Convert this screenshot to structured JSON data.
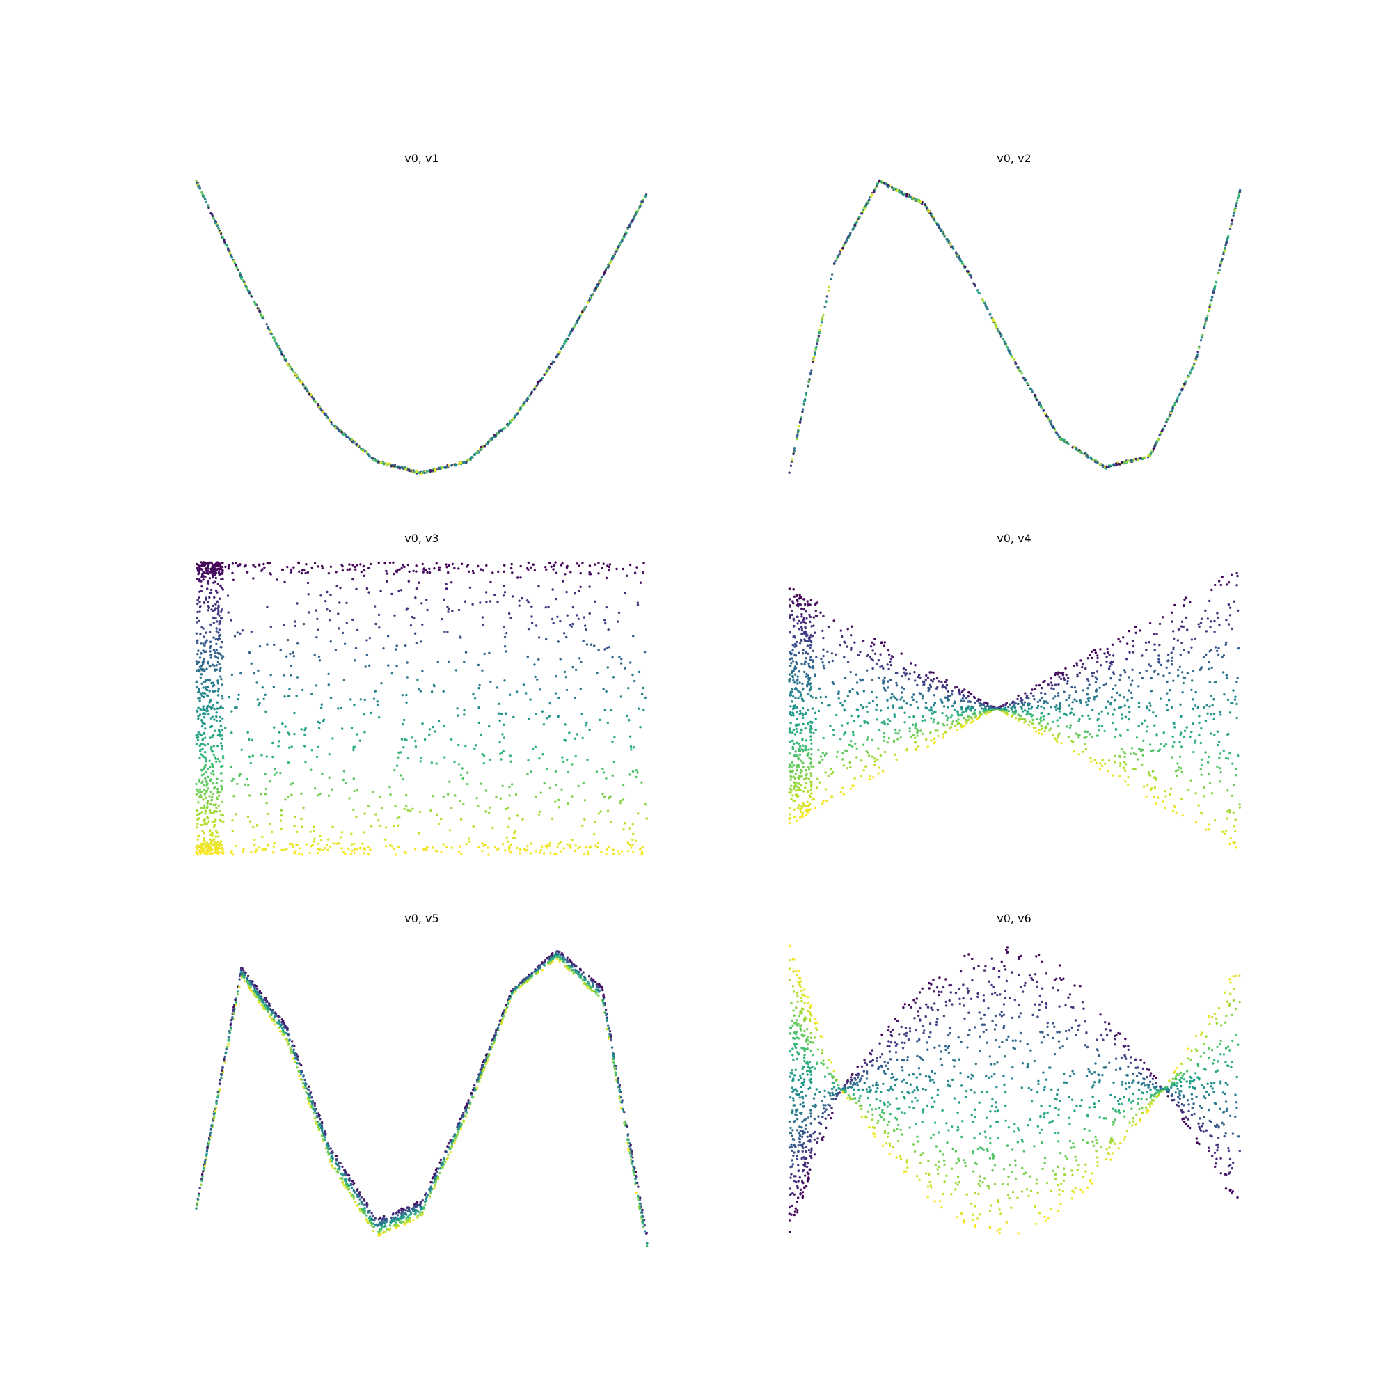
{
  "figure": {
    "background": "#ffffff",
    "colormap": "viridis",
    "point_color_by": "v3"
  },
  "chart_data": [
    {
      "type": "scatter",
      "title": "v0, v1",
      "xlabel": "",
      "ylabel": "",
      "axes_visible": false,
      "series": [
        {
          "x_range": [
            -1,
            1
          ],
          "shape": "quadratic curve, thin band, colors mixed",
          "x": [
            -1,
            -0.8,
            -0.6,
            -0.4,
            -0.2,
            0,
            0.2,
            0.4,
            0.6,
            0.8,
            1
          ],
          "y": [
            1.0,
            0.67,
            0.38,
            0.17,
            0.04,
            0.0,
            0.04,
            0.18,
            0.4,
            0.67,
            0.96
          ]
        }
      ]
    },
    {
      "type": "scatter",
      "title": "v0, v2",
      "xlabel": "",
      "ylabel": "",
      "axes_visible": false,
      "series": [
        {
          "x_range": [
            -1,
            1
          ],
          "shape": "cubic curve, thin band, colors mixed",
          "x": [
            -1,
            -0.8,
            -0.6,
            -0.4,
            -0.2,
            0,
            0.2,
            0.4,
            0.6,
            0.8,
            1
          ],
          "y": [
            0.0,
            0.72,
            1.0,
            0.92,
            0.68,
            0.38,
            0.12,
            0.02,
            0.06,
            0.38,
            0.97
          ]
        }
      ]
    },
    {
      "type": "scatter",
      "title": "v0, v3",
      "xlabel": "",
      "ylabel": "",
      "axes_visible": false,
      "series": [
        {
          "x_range": [
            -1,
            1
          ],
          "y_range": [
            0,
            1
          ],
          "shape": "filled rectangle, color by height, dense near left edge"
        }
      ]
    },
    {
      "type": "scatter",
      "title": "v0, v4",
      "xlabel": "",
      "ylabel": "",
      "axes_visible": false,
      "series": [
        {
          "x_range": [
            -1,
            1
          ],
          "crossing_x": -0.08,
          "shape": "bowtie band, lines crossing",
          "upper_left": [
            0.92,
            0.5
          ],
          "lower_left": [
            0.1,
            0.5
          ],
          "upper_right": [
            0.5,
            1.0
          ],
          "lower_right": [
            0.5,
            0.0
          ]
        }
      ]
    },
    {
      "type": "scatter",
      "title": "v0, v5",
      "xlabel": "",
      "ylabel": "",
      "axes_visible": false,
      "series": [
        {
          "x_range": [
            -1,
            1
          ],
          "shape": "quartic curve, widening band",
          "x": [
            -1,
            -0.8,
            -0.6,
            -0.4,
            -0.2,
            0,
            0.2,
            0.4,
            0.6,
            0.8,
            1
          ],
          "y": [
            0.1,
            0.92,
            0.72,
            0.3,
            0.06,
            0.12,
            0.45,
            0.84,
            0.98,
            0.85,
            0.0
          ]
        }
      ]
    },
    {
      "type": "scatter",
      "title": "v0, v6",
      "xlabel": "",
      "ylabel": "",
      "axes_visible": false,
      "series": [
        {
          "x_range": [
            -1,
            1
          ],
          "crossings_x": [
            -0.77,
            0.66
          ],
          "shape": "two crossing lobes",
          "a_curve": "1 - 3.5*(x+0.77)*(x-0.66) envelope",
          "b_curve": "mirror"
        }
      ]
    }
  ]
}
